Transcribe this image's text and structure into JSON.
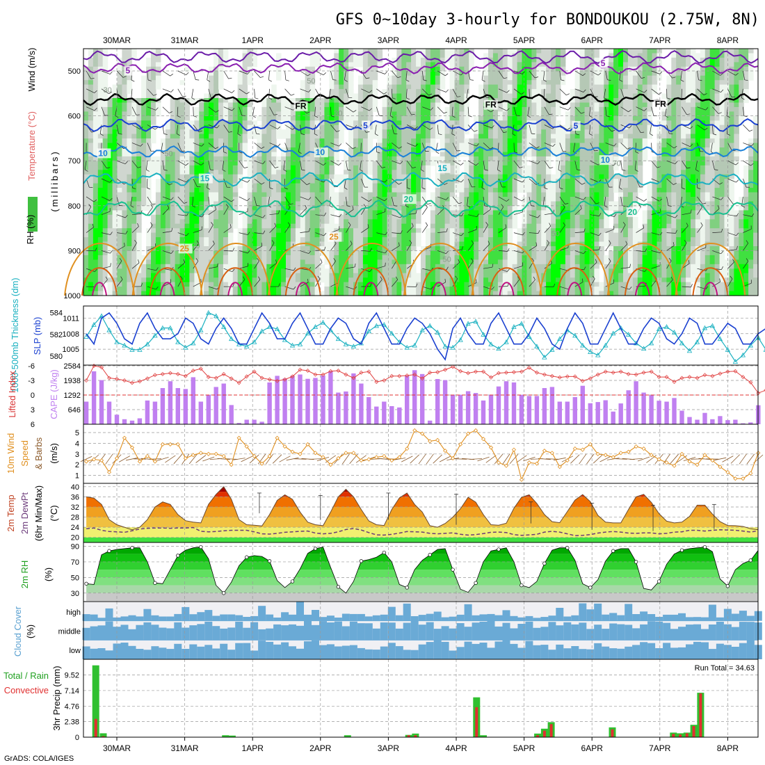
{
  "chart_data": {
    "type": "meteogram",
    "title": "GFS 0~10day 3-hourly for BONDOUKOU (2.75W, 8N)",
    "credit": "GrADS: COLA/IGES",
    "dates": [
      "30MAR",
      "31MAR",
      "1APR",
      "2APR",
      "3APR",
      "4APR",
      "5APR",
      "6APR",
      "7APR",
      "8APR"
    ],
    "run_total_label": "Run Total = 34.63",
    "panels": {
      "upper_air": {
        "ylabels": {
          "rh": "RH (%)",
          "temp": "Temperature (°C)",
          "wind": "Wind (m/s)",
          "axis": "(millibars)"
        },
        "pressure_ticks": [
          "500",
          "600",
          "700",
          "800",
          "900",
          "1000"
        ],
        "contour_labels": [
          {
            "text": "5",
            "lon": 0.2,
            "p": 504,
            "kind": "temp",
            "color": "#8a1fb0"
          },
          {
            "text": "5",
            "lon": 7.2,
            "p": 488,
            "kind": "temp",
            "color": "#8a1fb0"
          },
          {
            "text": "FR",
            "lon": 2.7,
            "p": 583,
            "kind": "fr",
            "color": "#000000"
          },
          {
            "text": "FR",
            "lon": 5.5,
            "p": 580,
            "kind": "fr",
            "color": "#000000"
          },
          {
            "text": "FR",
            "lon": 8.0,
            "p": 578,
            "kind": "fr",
            "color": "#000000"
          },
          {
            "text": "5",
            "lon": 3.7,
            "p": 626,
            "kind": "temp",
            "color": "#1a40d0"
          },
          {
            "text": "5",
            "lon": 6.8,
            "p": 627,
            "kind": "temp",
            "color": "#1a40d0"
          },
          {
            "text": "10",
            "lon": -0.2,
            "p": 688,
            "kind": "temp",
            "color": "#1a80d8"
          },
          {
            "text": "10",
            "lon": 3.0,
            "p": 686,
            "kind": "temp",
            "color": "#1a80d8"
          },
          {
            "text": "10",
            "lon": 7.2,
            "p": 703,
            "kind": "temp",
            "color": "#1a80d8"
          },
          {
            "text": "15",
            "lon": 1.3,
            "p": 744,
            "kind": "temp",
            "color": "#19b0c0"
          },
          {
            "text": "15",
            "lon": 4.8,
            "p": 721,
            "kind": "temp",
            "color": "#19b0c0"
          },
          {
            "text": "20",
            "lon": 4.3,
            "p": 790,
            "kind": "temp",
            "color": "#17c090"
          },
          {
            "text": "20",
            "lon": 7.6,
            "p": 819,
            "kind": "temp",
            "color": "#17c090"
          },
          {
            "text": "25",
            "lon": 1.0,
            "p": 900,
            "kind": "temp",
            "color": "#e09020"
          },
          {
            "text": "25",
            "lon": 3.2,
            "p": 874,
            "kind": "temp",
            "color": "#e09020"
          }
        ],
        "rh_labels": [
          "30",
          "50",
          "50",
          "30",
          "70",
          "50",
          "70",
          "50"
        ]
      },
      "thickness_slp": {
        "ylabels": {
          "thk": "1000-500mb Thickness (dm)",
          "slp": "SLP (mb)"
        },
        "thk_ticks": [
          580,
          582,
          584
        ],
        "slp_ticks": [
          1005,
          1008,
          1011
        ],
        "slp": [
          1008,
          1006,
          1011,
          1012,
          1010,
          1007,
          1006,
          1010,
          1012,
          1009,
          1007,
          1007,
          1008,
          1011,
          1010,
          1007,
          1006,
          1009,
          1011,
          1009,
          1006,
          1006,
          1009,
          1012,
          1010,
          1007,
          1007,
          1010,
          1012,
          1009,
          1006,
          1006,
          1009,
          1011,
          1010,
          1007,
          1006,
          1010,
          1012,
          1009,
          1006,
          1006,
          1009,
          1011,
          1010,
          1008,
          1005,
          1003,
          1009,
          1011,
          1008,
          1006,
          1006,
          1010,
          1012,
          1009,
          1006,
          1006,
          1008,
          1011,
          1009,
          1006,
          1005,
          1009,
          1012,
          1010,
          1006,
          1006,
          1009,
          1012,
          1009,
          1006,
          1006,
          1009,
          1011,
          1010,
          1007,
          1006,
          1008,
          1011,
          1010,
          1006,
          1006,
          1008,
          1010,
          1009,
          1006,
          1006,
          1008,
          1009,
          1009
        ],
        "thk": [
          581.8,
          582.9,
          583.7,
          582.4,
          581.3,
          581.0,
          580.6,
          580.6,
          581.1,
          581.9,
          582.6,
          582.6,
          581.3,
          580.8,
          581.2,
          582.4,
          584.0,
          583.7,
          582.7,
          581.6,
          581.1,
          580.9,
          581.3,
          582.3,
          582.7,
          582.5,
          581.5,
          581.0,
          581.1,
          582.1,
          582.7,
          583.1,
          582.4,
          581.6,
          581.1,
          580.9,
          581.2,
          582.3,
          582.8,
          582.9,
          582.1,
          581.3,
          580.8,
          581.0,
          582.4,
          582.8,
          582.2,
          580.9,
          580.8,
          581.5,
          583.0,
          583.2,
          582.0,
          581.1,
          580.7,
          581.3,
          582.7,
          583.0,
          581.8,
          580.9,
          579.9,
          580.6,
          581.6,
          582.4,
          581.9,
          581.0,
          580.4,
          580.1,
          581.0,
          582.1,
          582.6,
          582.0,
          581.2,
          580.7,
          581.2,
          582.5,
          582.7,
          582.2,
          581.2,
          580.5,
          581.3,
          582.6,
          582.8,
          581.6,
          580.6,
          579.5,
          580.1,
          581.0,
          581.7,
          580.6,
          580.2
        ]
      },
      "cape_li": {
        "ylabels": {
          "li": "Lifted Index",
          "cape": "CAPE (J/kg)"
        },
        "li_ticks": [
          "-6",
          "-3",
          "0",
          "3",
          "6"
        ],
        "cape_ticks": [
          646,
          1292,
          1938,
          2584
        ],
        "cape": [
          1000,
          2340,
          1950,
          1000,
          420,
          220,
          160,
          260,
          1050,
          1000,
          1600,
          1900,
          1600,
          1560,
          2080,
          1000,
          1300,
          1650,
          1800,
          850,
          55,
          200,
          200,
          110,
          1850,
          2140,
          2020,
          2140,
          2200,
          2010,
          2050,
          2160,
          2340,
          1400,
          1450,
          2250,
          1800,
          1200,
          780,
          1000,
          800,
          740,
          2140,
          2390,
          2220,
          160,
          2000,
          1950,
          1300,
          1300,
          1460,
          1380,
          1050,
          1300,
          1670,
          1900,
          1850,
          1300,
          1250,
          1250,
          1600,
          1650,
          1000,
          1000,
          1200,
          1700,
          930,
          980,
          1060,
          560,
          920,
          1500,
          1900,
          1400,
          1280,
          1040,
          1000,
          1160,
          600,
          320,
          200,
          500,
          220,
          360,
          180,
          200,
          40,
          80,
          840
        ],
        "li": [
          -3,
          -6,
          -5.7,
          -3.5,
          -3.3,
          -3,
          -2.5,
          -2.8,
          -3.4,
          -4.1,
          -4.3,
          -4.5,
          -4.3,
          -3.9,
          -5,
          -5.4,
          -3.7,
          -3.5,
          -4.3,
          -3.4,
          -2.5,
          -3.8,
          -4.8,
          -3.5,
          -3.2,
          -2.9,
          -3.2,
          -3.8,
          -5.2,
          -5,
          -4.2,
          -4.2,
          -4.9,
          -5,
          -4.2,
          -3.5,
          -4.6,
          -4.8,
          -2.7,
          -3,
          -3.9,
          -3.9,
          -4,
          -4.2,
          -3.4,
          -4.6,
          -4.7,
          -5.2,
          -5.8,
          -4.9,
          -4.5,
          -4.8,
          -4.8,
          -3.6,
          -4.5,
          -4.6,
          -4.7,
          -4.8,
          -5.6,
          -4.6,
          -4.2,
          -3.9,
          -3.6,
          -3.8,
          -3.8,
          -2.9,
          -3.4,
          -4.2,
          -4.8,
          -4.6,
          -4.8,
          -4.3,
          -4.2,
          -4.6,
          -4.8,
          -3.7,
          -3.7,
          -2.7,
          -3.5,
          -3.7,
          -3.5,
          -4.1,
          -3.9,
          -4.4,
          -4.8,
          -4.9,
          -3.7,
          -2.6,
          -0.4,
          -1,
          -4.4
        ]
      },
      "wind10m": {
        "ylabels": {
          "a": "10m Wind",
          "b": "Speed",
          "c": "& Barbs",
          "unit": "(m/s)"
        },
        "ticks": [
          1,
          2,
          3,
          4,
          5
        ],
        "speed": [
          2.3,
          2.5,
          2.4,
          1.3,
          2.6,
          4.5,
          3.6,
          2.3,
          2.8,
          2.3,
          3.9,
          3.9,
          3.9,
          2.6,
          2.9,
          3.1,
          3.0,
          3.0,
          2.8,
          2.0,
          4.5,
          3.7,
          2.8,
          2.1,
          2.8,
          4.5,
          3.7,
          3.2,
          3.0,
          3.9,
          3.1,
          2.7,
          2.0,
          2.6,
          3.1,
          3.1,
          2.4,
          2.5,
          2.7,
          2.8,
          2.4,
          2.7,
          3.5,
          5.2,
          4.9,
          4.2,
          4.3,
          3.3,
          2.6,
          3.9,
          4.9,
          5.2,
          4.4,
          3.6,
          2.2,
          1.9,
          3.4,
          0.6,
          2.2,
          2.1,
          3.3,
          3.1,
          1.8,
          2.4,
          3.5,
          3.4,
          3.9,
          3.0,
          2.9,
          2.7,
          3.1,
          3.2,
          3.7,
          3.5,
          2.9,
          2.5,
          2.2,
          1.9,
          3.0,
          2.3,
          2.0,
          2.9,
          2.4,
          1.8,
          1.3,
          0.7,
          0.7,
          1.2,
          3.1
        ]
      },
      "temp2m": {
        "ylabels": {
          "a": "2m Temp",
          "b": "2m DewPt",
          "c": "(6hr Min/Max)",
          "unit": "(°C)"
        },
        "ticks": [
          20,
          24,
          28,
          32,
          36,
          40
        ],
        "temp": [
          36,
          35.5,
          33,
          27,
          25,
          24,
          23,
          24,
          27,
          32,
          34,
          33,
          29,
          26.6,
          26,
          25.7,
          33,
          37,
          40,
          35,
          27,
          25,
          24.8,
          24.5,
          29,
          34.6,
          36.8,
          35,
          30,
          26,
          25,
          24.6,
          30,
          36,
          39,
          36,
          31,
          26.5,
          25,
          24.7,
          31,
          35.6,
          37.5,
          33,
          30,
          24.6,
          24,
          25.5,
          28,
          31.3,
          35.8,
          33.9,
          29,
          25,
          24.8,
          25.6,
          31.5,
          35.8,
          36.8,
          33.4,
          29,
          26.2,
          25.8,
          30.2,
          34.7,
          36.9,
          34.1,
          28.7,
          26,
          25.7,
          25.7,
          31,
          36,
          37,
          33.8,
          29.4,
          26.4,
          25.7,
          26,
          28.3,
          32.7,
          32.7,
          29.2,
          26.2,
          24.7,
          24.6,
          24.3,
          23.4,
          23
        ],
        "dew": [
          23.4,
          23.7,
          22.8,
          22.3,
          22.2,
          22.0,
          22.6,
          23.3,
          23.6,
          23.7,
          23.7,
          23.6,
          23.7,
          23.7,
          23.9,
          22.4,
          22.2,
          22.3,
          22.6,
          22.8,
          22.8,
          22.8,
          22.2,
          21.4,
          21.3,
          21.6,
          22.0,
          22.2,
          22.4,
          22.5,
          21.7,
          21.4,
          21.6,
          22.2,
          23.1,
          23.5,
          22.9,
          21.9,
          21.0,
          20.9,
          21.2,
          21.7,
          22.3,
          22.2,
          22.1,
          21.6,
          21.4,
          21.6,
          21.8,
          21.2,
          20.9,
          21.1,
          21.5,
          22.0,
          22.1,
          21.9,
          21.1,
          20.8,
          21.0,
          21.2,
          22.1,
          22.4,
          22.1,
          21.4,
          20.7,
          20.8,
          21.1,
          21.7,
          22.1,
          22.3,
          22.1,
          21.7,
          21.6,
          21.8,
          21.8,
          21.4,
          21.6,
          22.1,
          22.2,
          22.8,
          22.8,
          22.5,
          22.8,
          23.0,
          22.9,
          22.8,
          22.5,
          22.1,
          22.6
        ],
        "minmax_bars": [
          [
            2.6,
            29.5,
            37.5
          ],
          [
            3.5,
            27,
            36.5
          ],
          [
            4.5,
            27,
            37.5
          ],
          [
            5.5,
            25,
            37
          ],
          [
            6.6,
            25.5,
            34
          ],
          [
            7.5,
            23,
            33.5
          ],
          [
            8.4,
            22.5,
            32.7
          ],
          [
            9.3,
            23.3,
            33
          ]
        ]
      },
      "rh2m": {
        "ylabels": {
          "a": "2m RH",
          "unit": "(%)"
        },
        "ticks": [
          30,
          50,
          70,
          90
        ],
        "rh": [
          42,
          41,
          79,
          84,
          86,
          87,
          88,
          88,
          70,
          43,
          42,
          60,
          78,
          85,
          88,
          89,
          74,
          40,
          30,
          44,
          65,
          76,
          78,
          77,
          71,
          46,
          37,
          45,
          61,
          81,
          87,
          89,
          63,
          38,
          30,
          45,
          71,
          73,
          76,
          82,
          70,
          41,
          37,
          60,
          72,
          79,
          86,
          87,
          60,
          35,
          31,
          43,
          70,
          84,
          86,
          88,
          70,
          40,
          37,
          45,
          68,
          85,
          88,
          88,
          72,
          42,
          37,
          47,
          71,
          84,
          87,
          87,
          70,
          36,
          34,
          45,
          67,
          80,
          85,
          87,
          88,
          89,
          83,
          48,
          39,
          60,
          68,
          72,
          85
        ]
      },
      "cloud": {
        "ylabels": {
          "a": "Cloud Cover",
          "unit": "(%)"
        },
        "levels": [
          "high",
          "middle",
          "low"
        ]
      },
      "precip": {
        "ylabels": {
          "a": "3hr Precip (mm)",
          "b": "Total / Rain",
          "c": "Convective"
        },
        "ticks": [
          "2.38",
          "4.76",
          "7.14",
          "9.52"
        ],
        "bars": [
          [
            0.19,
            11.0,
            2.8
          ],
          [
            0.3,
            0.6,
            0.15
          ],
          [
            2.1,
            0.3,
            0.0
          ],
          [
            2.2,
            0.25,
            0.0
          ],
          [
            3.9,
            0.3,
            0.0
          ],
          [
            4.8,
            0.35,
            0.3
          ],
          [
            4.9,
            0.55,
            0.3
          ],
          [
            5.8,
            6.1,
            4.6
          ],
          [
            5.9,
            0.3,
            0.0
          ],
          [
            6.7,
            0.55,
            0.3
          ],
          [
            6.8,
            1.3,
            1.0
          ],
          [
            6.9,
            2.3,
            2.0
          ],
          [
            7.8,
            1.5,
            1.2
          ],
          [
            8.7,
            0.7,
            0.5
          ],
          [
            8.8,
            0.6,
            0.4
          ],
          [
            8.9,
            0.7,
            0.6
          ],
          [
            9.0,
            1.9,
            1.7
          ],
          [
            9.1,
            6.8,
            6.7
          ]
        ]
      }
    }
  }
}
